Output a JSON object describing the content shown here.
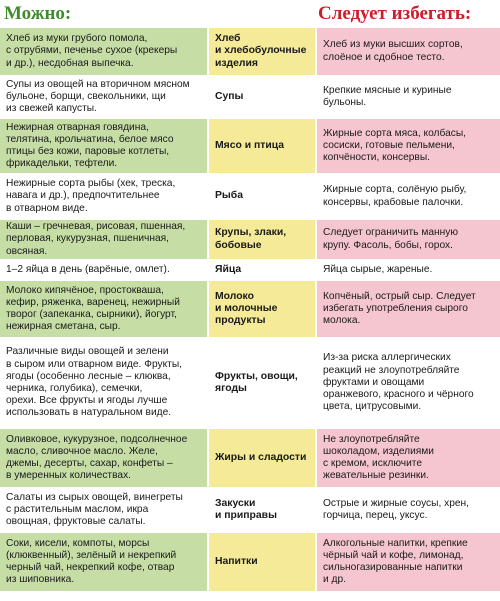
{
  "headers": {
    "allowed": "Можно:",
    "avoid": "Следует избегать:"
  },
  "rows": [
    {
      "allowed": "Хлеб из муки грубого помола,\nс отрубями, печенье сухое (крекеры\nи др.), несдобная выпечка.",
      "category": "Хлеб\nи хлебобулочные\nизделия",
      "avoid": "Хлеб из муки высших сортов,\nслоёное и сдобное тесто."
    },
    {
      "allowed": "Супы из овощей на вторичном мясном\nбульоне, борщи, свекольники, щи\nиз свежей капусты.",
      "category": "Супы",
      "avoid": "Крепкие мясные и куриные\nбульоны."
    },
    {
      "allowed": "Нежирная отварная говядина,\nтелятина, крольчатина, белое мясо\nптицы без кожи, паровые котлеты,\nфрикадельки, тефтели.",
      "category": "Мясо и птица",
      "avoid": "Жирные сорта мяса, колбасы,\nсосиски, готовые пельмени,\nкопчёности, консервы."
    },
    {
      "allowed": "Нежирные сорта рыбы (хек, треска,\nнавага и др.),  предпочтительнее\nв отварном виде.",
      "category": "Рыба",
      "avoid": "Жирные сорта, солёную рыбу,\nконсервы, крабовые палочки."
    },
    {
      "allowed": "Каши – гречневая, рисовая, пшенная,\nперловая, кукурузная, пшеничная,\nовсяная.",
      "category": "Крупы, злаки,\nбобовые",
      "avoid": "Следует ограничить манную\nкрупу. Фасоль, бобы, горох."
    },
    {
      "allowed": "1–2 яйца в день (варёные, омлет).",
      "category": "Яйца",
      "avoid": "Яйца сырые, жареные."
    },
    {
      "allowed": "Молоко кипячёное, простокваша,\nкефир, ряженка, варенец, нежирный\nтворог (запеканка, сырники), йогурт,\nнежирная сметана, сыр.",
      "category": "Молоко\nи молочные\nпродукты",
      "avoid": "Копчёный, острый сыр. Следует\nизбегать употребления сырого\nмолока."
    },
    {
      "allowed": "Различные виды овощей и зелени\nв сыром или отварном виде. Фрукты,\nягоды (особенно лесные – клюква,\nчерника, голубика), семечки,\nорехи. Все фрукты и ягоды лучше\nиспользовать в натуральном виде.",
      "category": "Фрукты, овощи,\nягоды",
      "avoid": "Из-за риска аллергических\nреакций не злоупотребляйте\nфруктами и овощами\nоранжевого, красного и чёрного\nцвета, цитрусовыми."
    },
    {
      "allowed": "Оливковое, кукурузное, подсолнечное\nмасло, сливочное масло. Желе,\nджемы, десерты, сахар, конфеты –\nв умеренных количествах.",
      "category": "Жиры и сладости",
      "avoid": "Не злоупотребляйте\nшоколадом, изделиями\nс кремом, исключите\nжевательные резинки."
    },
    {
      "allowed": "Салаты из сырых овощей, винегреты\nс растительным маслом, икра\nовощная, фруктовые салаты.",
      "category": "Закуски\nи приправы",
      "avoid": "Острые и жирные соусы, хрен,\nгорчица, перец, уксус."
    },
    {
      "allowed": "Соки, кисели, компоты, морсы\n(клюквенный), зелёный и некрепкий\nчерный чай, некрепкий кофе, отвар\nиз шиповника.",
      "category": "Напитки",
      "avoid": "Алкогольные напитки, крепкие\nчёрный чай и кофе, лимонад,\nсильногазированные напитки\nи др."
    }
  ]
}
